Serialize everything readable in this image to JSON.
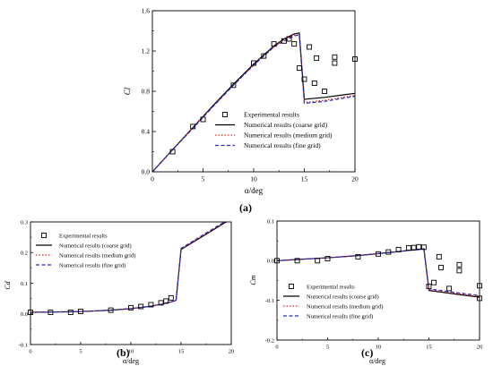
{
  "chart_data": [
    {
      "type": "scatter",
      "panel_label": "(a)",
      "xlabel": "α/deg",
      "ylabel": "Cl",
      "xlim": [
        0,
        20
      ],
      "ylim": [
        0,
        1.6
      ],
      "x_ticks": [
        0,
        5,
        10,
        15,
        20
      ],
      "x_tick_labels": [
        "0",
        "5",
        "10",
        "15",
        "20"
      ],
      "y_ticks": [
        0,
        0.4,
        0.8,
        1.2,
        1.6
      ],
      "y_tick_labels": [
        "0.0",
        "0.4",
        "0.8",
        "1.2",
        "1.6"
      ],
      "grid": false,
      "legend_position": "bottom-right",
      "series": [
        {
          "name": "Experimental results",
          "kind": "markers",
          "color": "#000000",
          "x": [
            2,
            4,
            5,
            8,
            10,
            11,
            12,
            13,
            13.5,
            14,
            14.5,
            15,
            15.5,
            16,
            16.2,
            17,
            18,
            18,
            20
          ],
          "y": [
            0.2,
            0.45,
            0.52,
            0.86,
            1.08,
            1.15,
            1.27,
            1.3,
            1.32,
            1.27,
            1.03,
            0.92,
            1.24,
            0.88,
            1.13,
            0.8,
            1.14,
            1.08,
            1.12
          ]
        },
        {
          "name": "Numerical results (coarse grid)",
          "kind": "solid",
          "color": "#000000",
          "x": [
            0,
            2,
            4,
            6,
            8,
            10,
            12,
            13,
            14,
            14.5,
            15,
            17,
            20
          ],
          "y": [
            0,
            0.22,
            0.44,
            0.66,
            0.87,
            1.07,
            1.25,
            1.32,
            1.37,
            1.38,
            0.72,
            0.74,
            0.78
          ]
        },
        {
          "name": "Numerical results (medium grid)",
          "kind": "dotted",
          "color": "#e8231c",
          "x": [
            0,
            2,
            4,
            6,
            8,
            10,
            12,
            13,
            14,
            14.5,
            15,
            17,
            20
          ],
          "y": [
            0,
            0.22,
            0.44,
            0.65,
            0.86,
            1.06,
            1.24,
            1.31,
            1.36,
            1.36,
            0.69,
            0.71,
            0.76
          ]
        },
        {
          "name": "Numerical results (fine grid)",
          "kind": "dashed",
          "color": "#1f2fc8",
          "x": [
            0,
            2,
            4,
            6,
            8,
            10,
            12,
            13,
            14,
            14.5,
            15,
            17,
            20
          ],
          "y": [
            0,
            0.22,
            0.43,
            0.65,
            0.86,
            1.06,
            1.24,
            1.3,
            1.35,
            1.36,
            0.68,
            0.7,
            0.75
          ]
        }
      ]
    },
    {
      "type": "scatter",
      "panel_label": "(b)",
      "xlabel": "α/deg",
      "ylabel": "Cd",
      "xlim": [
        0,
        20
      ],
      "ylim": [
        -0.1,
        0.3
      ],
      "x_ticks": [
        0,
        5,
        10,
        15,
        20
      ],
      "x_tick_labels": [
        "0",
        "5",
        "10",
        "15",
        "20"
      ],
      "y_ticks": [
        -0.1,
        0,
        0.1,
        0.2,
        0.3
      ],
      "y_tick_labels": [
        "-0.1",
        "0.0",
        "0.1",
        "0.2",
        "0.3"
      ],
      "grid": false,
      "legend_position": "top-left",
      "series": [
        {
          "name": "Experimental results",
          "kind": "markers",
          "color": "#000000",
          "x": [
            0,
            2,
            4,
            5,
            8,
            10,
            11,
            12,
            13,
            13.5,
            14
          ],
          "y": [
            0.005,
            0.005,
            0.005,
            0.008,
            0.012,
            0.02,
            0.024,
            0.03,
            0.036,
            0.042,
            0.052
          ]
        },
        {
          "name": "Numerical results (coarse grid)",
          "kind": "solid",
          "color": "#000000",
          "x": [
            0,
            2,
            4,
            6,
            8,
            10,
            12,
            13,
            14,
            14.5,
            15,
            17,
            19,
            20
          ],
          "y": [
            0.005,
            0.006,
            0.007,
            0.009,
            0.012,
            0.017,
            0.025,
            0.031,
            0.039,
            0.044,
            0.21,
            0.25,
            0.29,
            0.31
          ]
        },
        {
          "name": "Numerical results (medium grid)",
          "kind": "dotted",
          "color": "#e8231c",
          "x": [
            0,
            2,
            4,
            6,
            8,
            10,
            12,
            13,
            14,
            14.5,
            15,
            17,
            19,
            20
          ],
          "y": [
            0.005,
            0.006,
            0.007,
            0.009,
            0.012,
            0.017,
            0.025,
            0.031,
            0.039,
            0.044,
            0.212,
            0.252,
            0.292,
            0.312
          ]
        },
        {
          "name": "Numerical results (fine grid)",
          "kind": "dashed",
          "color": "#1f2fc8",
          "x": [
            0,
            2,
            4,
            6,
            8,
            10,
            12,
            13,
            14,
            14.5,
            15,
            17,
            19,
            20
          ],
          "y": [
            0.005,
            0.006,
            0.007,
            0.009,
            0.012,
            0.017,
            0.025,
            0.031,
            0.039,
            0.044,
            0.214,
            0.254,
            0.294,
            0.314
          ]
        }
      ]
    },
    {
      "type": "scatter",
      "panel_label": "(c)",
      "xlabel": "α/deg",
      "ylabel": "Cm",
      "xlim": [
        0,
        20
      ],
      "ylim": [
        -0.2,
        0.1
      ],
      "x_ticks": [
        0,
        5,
        10,
        15,
        20
      ],
      "x_tick_labels": [
        "0",
        "5",
        "10",
        "15",
        "20"
      ],
      "y_ticks": [
        -0.2,
        -0.1,
        0,
        0.1
      ],
      "y_tick_labels": [
        "-0.2",
        "-0.1",
        "0.0",
        "0.1"
      ],
      "grid": false,
      "legend_position": "bottom-left",
      "series": [
        {
          "name": "Experimental results",
          "kind": "markers",
          "color": "#000000",
          "x": [
            0,
            2,
            4,
            5,
            8,
            10,
            11,
            12,
            13,
            13.5,
            14,
            14.5,
            15,
            15.5,
            16,
            16.2,
            17,
            18,
            18,
            20,
            20
          ],
          "y": [
            0.0,
            0.0,
            0.0,
            0.005,
            0.01,
            0.017,
            0.022,
            0.028,
            0.032,
            0.033,
            0.035,
            0.034,
            -0.065,
            -0.055,
            0.01,
            -0.017,
            -0.07,
            -0.01,
            -0.025,
            -0.063,
            -0.095
          ]
        },
        {
          "name": "Numerical results (coarse grid)",
          "kind": "solid",
          "color": "#000000",
          "x": [
            0,
            2,
            4,
            6,
            8,
            10,
            12,
            13,
            14,
            14.5,
            15,
            17,
            20
          ],
          "y": [
            0.0,
            0.003,
            0.006,
            0.009,
            0.013,
            0.018,
            0.023,
            0.026,
            0.028,
            0.03,
            -0.075,
            -0.082,
            -0.092
          ]
        },
        {
          "name": "Numerical results (medium grid)",
          "kind": "dotted",
          "color": "#e8231c",
          "x": [
            0,
            2,
            4,
            6,
            8,
            10,
            12,
            13,
            14,
            14.5,
            15,
            17,
            20
          ],
          "y": [
            0.0,
            0.003,
            0.006,
            0.009,
            0.013,
            0.018,
            0.023,
            0.026,
            0.028,
            0.03,
            -0.073,
            -0.08,
            -0.09
          ]
        },
        {
          "name": "Numerical results (fine grid)",
          "kind": "dashed",
          "color": "#1f2fc8",
          "x": [
            0,
            2,
            4,
            6,
            8,
            10,
            12,
            13,
            14,
            14.5,
            15,
            17,
            20
          ],
          "y": [
            0.0,
            0.003,
            0.006,
            0.009,
            0.013,
            0.018,
            0.023,
            0.026,
            0.028,
            0.03,
            -0.071,
            -0.078,
            -0.088
          ]
        }
      ]
    }
  ]
}
